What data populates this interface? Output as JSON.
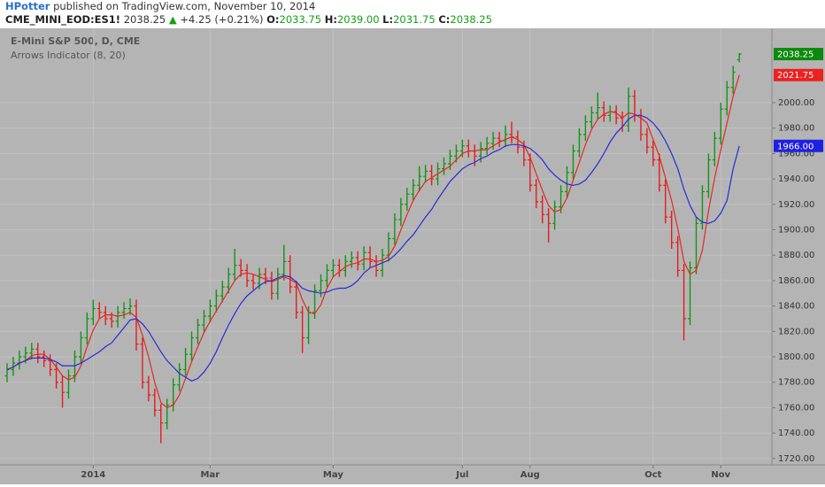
{
  "header": {
    "author": "HPotter",
    "published": "published on TradingView.com, November 10, 2014",
    "symbol": "CME_MINI_EOD:ES1!",
    "last": "2038.25",
    "arrow": "▲",
    "change": "+4.25 (+0.21%)",
    "o_label": "O:",
    "o": "2033.75",
    "h_label": "H:",
    "h": "2039.00",
    "l_label": "L:",
    "l": "2031.75",
    "c_label": "C:",
    "c": "2038.25"
  },
  "chart_data": {
    "type": "ohlc",
    "title": "E-Mini S&P 500, D, CME",
    "subtitle": "Arrows Indicator (8, 20)",
    "up_color": "#139413",
    "down_color": "#e41c1c",
    "grid": true,
    "xlim": [
      -1.15,
      124.3
    ],
    "ylim": [
      1715,
      2058.5
    ],
    "xticks": [
      {
        "value": 14,
        "label": "2014"
      },
      {
        "value": 33,
        "label": "Mar"
      },
      {
        "value": 53,
        "label": "May"
      },
      {
        "value": 74,
        "label": "Jul"
      },
      {
        "value": 85,
        "label": "Aug"
      },
      {
        "value": 105,
        "label": "Oct"
      },
      {
        "value": 116,
        "label": "Nov"
      }
    ],
    "yticks": [
      {
        "value": 1720,
        "label": "1720.00"
      },
      {
        "value": 1740,
        "label": "1740.00"
      },
      {
        "value": 1760,
        "label": "1760.00"
      },
      {
        "value": 1780,
        "label": "1780.00"
      },
      {
        "value": 1800,
        "label": "1800.00"
      },
      {
        "value": 1820,
        "label": "1820.00"
      },
      {
        "value": 1840,
        "label": "1840.00"
      },
      {
        "value": 1860,
        "label": "1860.00"
      },
      {
        "value": 1880,
        "label": "1880.00"
      },
      {
        "value": 1900,
        "label": "1900.00"
      },
      {
        "value": 1920,
        "label": "1920.00"
      },
      {
        "value": 1940,
        "label": "1940.00"
      },
      {
        "value": 1960,
        "label": "1960.00"
      },
      {
        "value": 1980,
        "label": "1980.00"
      },
      {
        "value": 2000,
        "label": "2000.00"
      }
    ],
    "x": [
      0,
      1,
      2,
      3,
      4,
      5,
      6,
      7,
      8,
      9,
      10,
      11,
      12,
      13,
      14,
      15,
      16,
      17,
      18,
      19,
      20,
      21,
      22,
      23,
      24,
      25,
      26,
      27,
      28,
      29,
      30,
      31,
      32,
      33,
      34,
      35,
      36,
      37,
      38,
      39,
      40,
      41,
      42,
      43,
      44,
      45,
      46,
      47,
      48,
      49,
      50,
      51,
      52,
      53,
      54,
      55,
      56,
      57,
      58,
      59,
      60,
      61,
      62,
      63,
      64,
      65,
      66,
      67,
      68,
      69,
      70,
      71,
      72,
      73,
      74,
      75,
      76,
      77,
      78,
      79,
      80,
      81,
      82,
      83,
      84,
      85,
      86,
      87,
      88,
      89,
      90,
      91,
      92,
      93,
      94,
      95,
      96,
      97,
      98,
      99,
      100,
      101,
      102,
      103,
      104,
      105,
      106,
      107,
      108,
      109,
      110,
      111,
      112,
      113,
      114,
      115,
      116,
      117,
      118,
      119
    ],
    "bars": [
      [
        1785,
        1795,
        1780,
        1790
      ],
      [
        1790,
        1800,
        1785,
        1795
      ],
      [
        1795,
        1805,
        1790,
        1800
      ],
      [
        1800,
        1808,
        1795,
        1803
      ],
      [
        1803,
        1811,
        1798,
        1806
      ],
      [
        1806,
        1811,
        1795,
        1800
      ],
      [
        1800,
        1805,
        1792,
        1797
      ],
      [
        1797,
        1802,
        1785,
        1790
      ],
      [
        1790,
        1795,
        1775,
        1780
      ],
      [
        1780,
        1785,
        1760,
        1772
      ],
      [
        1772,
        1790,
        1767,
        1785
      ],
      [
        1785,
        1805,
        1780,
        1800
      ],
      [
        1800,
        1820,
        1795,
        1815
      ],
      [
        1815,
        1835,
        1810,
        1830
      ],
      [
        1830,
        1845,
        1825,
        1838
      ],
      [
        1838,
        1843,
        1830,
        1835
      ],
      [
        1835,
        1840,
        1825,
        1830
      ],
      [
        1830,
        1835,
        1823,
        1828
      ],
      [
        1828,
        1840,
        1823,
        1835
      ],
      [
        1835,
        1843,
        1830,
        1838
      ],
      [
        1838,
        1846,
        1833,
        1840
      ],
      [
        1840,
        1845,
        1805,
        1810
      ],
      [
        1810,
        1815,
        1775,
        1780
      ],
      [
        1780,
        1785,
        1765,
        1770
      ],
      [
        1770,
        1775,
        1753,
        1758
      ],
      [
        1758,
        1763,
        1732,
        1748
      ],
      [
        1748,
        1767,
        1743,
        1762
      ],
      [
        1762,
        1783,
        1757,
        1778
      ],
      [
        1778,
        1795,
        1773,
        1790
      ],
      [
        1790,
        1807,
        1785,
        1802
      ],
      [
        1802,
        1820,
        1797,
        1815
      ],
      [
        1815,
        1830,
        1810,
        1825
      ],
      [
        1825,
        1837,
        1820,
        1832
      ],
      [
        1832,
        1845,
        1827,
        1840
      ],
      [
        1840,
        1853,
        1835,
        1848
      ],
      [
        1848,
        1860,
        1843,
        1855
      ],
      [
        1855,
        1870,
        1850,
        1865
      ],
      [
        1865,
        1885,
        1860,
        1872
      ],
      [
        1872,
        1877,
        1863,
        1868
      ],
      [
        1868,
        1873,
        1855,
        1860
      ],
      [
        1860,
        1865,
        1853,
        1858
      ],
      [
        1858,
        1870,
        1853,
        1865
      ],
      [
        1865,
        1870,
        1857,
        1862
      ],
      [
        1862,
        1867,
        1845,
        1850
      ],
      [
        1850,
        1870,
        1845,
        1865
      ],
      [
        1865,
        1888,
        1860,
        1875
      ],
      [
        1875,
        1880,
        1850,
        1855
      ],
      [
        1855,
        1860,
        1830,
        1835
      ],
      [
        1835,
        1840,
        1803,
        1815
      ],
      [
        1815,
        1840,
        1810,
        1835
      ],
      [
        1835,
        1857,
        1830,
        1852
      ],
      [
        1852,
        1865,
        1847,
        1860
      ],
      [
        1860,
        1873,
        1855,
        1868
      ],
      [
        1868,
        1877,
        1863,
        1872
      ],
      [
        1872,
        1877,
        1863,
        1868
      ],
      [
        1868,
        1880,
        1863,
        1875
      ],
      [
        1875,
        1883,
        1870,
        1878
      ],
      [
        1878,
        1883,
        1868,
        1873
      ],
      [
        1873,
        1887,
        1868,
        1882
      ],
      [
        1882,
        1887,
        1870,
        1875
      ],
      [
        1875,
        1880,
        1863,
        1868
      ],
      [
        1868,
        1885,
        1863,
        1880
      ],
      [
        1880,
        1898,
        1875,
        1893
      ],
      [
        1893,
        1913,
        1888,
        1908
      ],
      [
        1908,
        1925,
        1903,
        1920
      ],
      [
        1920,
        1933,
        1915,
        1928
      ],
      [
        1928,
        1940,
        1923,
        1935
      ],
      [
        1935,
        1950,
        1930,
        1942
      ],
      [
        1942,
        1951,
        1937,
        1946
      ],
      [
        1946,
        1951,
        1935,
        1940
      ],
      [
        1940,
        1953,
        1935,
        1948
      ],
      [
        1948,
        1957,
        1943,
        1952
      ],
      [
        1952,
        1963,
        1947,
        1958
      ],
      [
        1958,
        1967,
        1953,
        1962
      ],
      [
        1962,
        1971,
        1957,
        1966
      ],
      [
        1966,
        1971,
        1957,
        1962
      ],
      [
        1962,
        1967,
        1950,
        1958
      ],
      [
        1958,
        1969,
        1953,
        1964
      ],
      [
        1964,
        1973,
        1959,
        1968
      ],
      [
        1968,
        1977,
        1963,
        1972
      ],
      [
        1972,
        1977,
        1965,
        1970
      ],
      [
        1970,
        1982,
        1965,
        1975
      ],
      [
        1975,
        1985,
        1968,
        1973
      ],
      [
        1973,
        1978,
        1960,
        1965
      ],
      [
        1965,
        1970,
        1950,
        1955
      ],
      [
        1955,
        1960,
        1930,
        1935
      ],
      [
        1935,
        1940,
        1917,
        1922
      ],
      [
        1922,
        1927,
        1905,
        1912
      ],
      [
        1912,
        1917,
        1890,
        1905
      ],
      [
        1905,
        1923,
        1900,
        1918
      ],
      [
        1918,
        1935,
        1913,
        1930
      ],
      [
        1930,
        1950,
        1925,
        1945
      ],
      [
        1945,
        1967,
        1940,
        1962
      ],
      [
        1962,
        1980,
        1957,
        1975
      ],
      [
        1975,
        1990,
        1970,
        1985
      ],
      [
        1985,
        1997,
        1980,
        1992
      ],
      [
        1992,
        2008,
        1987,
        1996
      ],
      [
        1996,
        2001,
        1985,
        1990
      ],
      [
        1990,
        1998,
        1985,
        1993
      ],
      [
        1993,
        1998,
        1983,
        1988
      ],
      [
        1988,
        1993,
        1977,
        1982
      ],
      [
        1982,
        2012,
        1977,
        2005
      ],
      [
        2005,
        2010,
        1985,
        1990
      ],
      [
        1990,
        1995,
        1970,
        1975
      ],
      [
        1975,
        1980,
        1960,
        1965
      ],
      [
        1965,
        1970,
        1950,
        1955
      ],
      [
        1955,
        1960,
        1930,
        1935
      ],
      [
        1935,
        1940,
        1905,
        1910
      ],
      [
        1910,
        1915,
        1885,
        1890
      ],
      [
        1890,
        1895,
        1863,
        1868
      ],
      [
        1868,
        1873,
        1813,
        1830
      ],
      [
        1830,
        1875,
        1825,
        1870
      ],
      [
        1870,
        1910,
        1865,
        1905
      ],
      [
        1905,
        1935,
        1900,
        1930
      ],
      [
        1930,
        1960,
        1925,
        1955
      ],
      [
        1955,
        1977,
        1950,
        1972
      ],
      [
        1972,
        2000,
        1967,
        1995
      ],
      [
        1995,
        2017,
        1990,
        2012
      ],
      [
        2012,
        2029,
        2007,
        2024
      ],
      [
        2033.75,
        2039,
        2031.75,
        2038.25
      ]
    ],
    "lines": [
      {
        "color": "#e8261f",
        "values": [
          1790,
          1792,
          1795,
          1797,
          1801,
          1802,
          1802,
          1798,
          1792,
          1785,
          1782,
          1784,
          1793,
          1808,
          1821,
          1830,
          1833,
          1833,
          1832,
          1833,
          1835,
          1831,
          1817,
          1800,
          1780,
          1764,
          1760,
          1762,
          1770,
          1783,
          1796,
          1808,
          1819,
          1828,
          1836,
          1844,
          1852,
          1860,
          1865,
          1866,
          1865,
          1863,
          1861,
          1859,
          1861,
          1863,
          1861,
          1858,
          1845,
          1835,
          1834,
          1841,
          1854,
          1863,
          1867,
          1871,
          1873,
          1874,
          1877,
          1877,
          1875,
          1876,
          1879,
          1887,
          1900,
          1912,
          1923,
          1931,
          1938,
          1941,
          1944,
          1947,
          1950,
          1955,
          1960,
          1962,
          1962,
          1963,
          1963,
          1966,
          1969,
          1971,
          1973,
          1971,
          1967,
          1957,
          1944,
          1931,
          1919,
          1914,
          1916,
          1925,
          1939,
          1953,
          1967,
          1979,
          1987,
          1991,
          1993,
          1992,
          1988,
          1992,
          1991,
          1988,
          1984,
          1971,
          1958,
          1941,
          1923,
          1901,
          1875,
          1865,
          1868,
          1884,
          1915,
          1941,
          1963,
          1984,
          2005,
          2021.75
        ]
      },
      {
        "color": "#2a2ad8",
        "values": [
          1790,
          1792,
          1795,
          1797,
          1799,
          1799,
          1799,
          1798,
          1796,
          1793,
          1793,
          1793,
          1795,
          1798,
          1801,
          1804,
          1808,
          1811,
          1817,
          1823,
          1829,
          1830,
          1826,
          1820,
          1812,
          1804,
          1797,
          1792,
          1787,
          1784,
          1781,
          1783,
          1788,
          1795,
          1804,
          1815,
          1825,
          1834,
          1842,
          1848,
          1852,
          1856,
          1859,
          1860,
          1862,
          1864,
          1863,
          1859,
          1854,
          1852,
          1851,
          1850,
          1851,
          1853,
          1854,
          1854,
          1856,
          1860,
          1866,
          1870,
          1872,
          1874,
          1876,
          1880,
          1885,
          1891,
          1896,
          1903,
          1910,
          1916,
          1924,
          1931,
          1938,
          1943,
          1948,
          1951,
          1953,
          1956,
          1958,
          1961,
          1963,
          1966,
          1967,
          1967,
          1966,
          1964,
          1960,
          1955,
          1948,
          1943,
          1939,
          1936,
          1935,
          1936,
          1939,
          1945,
          1952,
          1960,
          1969,
          1976,
          1981,
          1987,
          1990,
          1990,
          1988,
          1984,
          1978,
          1970,
          1960,
          1948,
          1932,
          1919,
          1910,
          1906,
          1905,
          1907,
          1913,
          1923,
          1948,
          1966
        ]
      }
    ],
    "price_labels": [
      {
        "value": 2038.25,
        "label": "2038.25",
        "color": "#0b8a0b"
      },
      {
        "value": 2021.75,
        "label": "2021.75",
        "color": "#ee2020"
      },
      {
        "value": 1966,
        "label": "1966.00",
        "color": "#2020e0"
      }
    ]
  }
}
